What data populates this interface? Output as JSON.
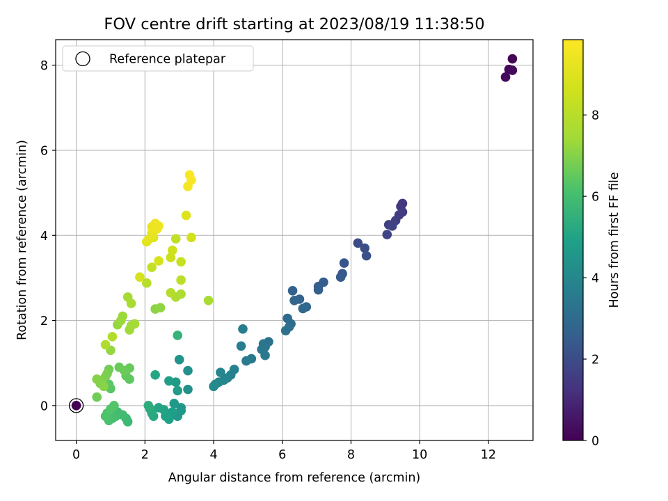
{
  "chart_data": {
    "type": "scatter",
    "title": "FOV centre drift starting at 2023/08/19 11:38:50",
    "xlabel": "Angular distance from reference (arcmin)",
    "ylabel": "Rotation from reference (arcmin)",
    "xlim": [
      -0.6,
      13.3
    ],
    "ylim": [
      -0.82,
      8.6
    ],
    "xticks": [
      0,
      2,
      4,
      6,
      8,
      10,
      12
    ],
    "yticks": [
      0,
      2,
      4,
      6,
      8
    ],
    "grid": true,
    "legend": {
      "placement": "top-left",
      "entries": [
        "Reference platepar"
      ]
    },
    "colorbar": {
      "label": "Hours from first FF file",
      "range": [
        0,
        9.85
      ],
      "ticks": [
        0,
        2,
        4,
        6,
        8
      ],
      "colormap": "viridis"
    },
    "reference_point": {
      "x": 0,
      "y": 0,
      "hours": 0
    },
    "points": [
      {
        "x": 12.7,
        "y": 8.15,
        "h": 0.1
      },
      {
        "x": 12.6,
        "y": 7.9,
        "h": 0.15
      },
      {
        "x": 12.7,
        "y": 7.88,
        "h": 0.2
      },
      {
        "x": 12.5,
        "y": 7.72,
        "h": 0.25
      },
      {
        "x": 9.5,
        "y": 4.75,
        "h": 1.4
      },
      {
        "x": 9.45,
        "y": 4.68,
        "h": 1.45
      },
      {
        "x": 9.5,
        "y": 4.55,
        "h": 1.5
      },
      {
        "x": 9.4,
        "y": 4.48,
        "h": 1.55
      },
      {
        "x": 9.3,
        "y": 4.35,
        "h": 1.6
      },
      {
        "x": 9.1,
        "y": 4.25,
        "h": 1.65
      },
      {
        "x": 9.2,
        "y": 4.22,
        "h": 1.7
      },
      {
        "x": 9.05,
        "y": 4.02,
        "h": 1.75
      },
      {
        "x": 8.2,
        "y": 3.82,
        "h": 2.0
      },
      {
        "x": 8.4,
        "y": 3.7,
        "h": 2.05
      },
      {
        "x": 8.45,
        "y": 3.52,
        "h": 2.1
      },
      {
        "x": 7.8,
        "y": 3.35,
        "h": 2.3
      },
      {
        "x": 7.75,
        "y": 3.1,
        "h": 2.35
      },
      {
        "x": 7.7,
        "y": 3.02,
        "h": 2.4
      },
      {
        "x": 7.2,
        "y": 2.9,
        "h": 2.5
      },
      {
        "x": 7.05,
        "y": 2.8,
        "h": 2.55
      },
      {
        "x": 7.05,
        "y": 2.72,
        "h": 2.6
      },
      {
        "x": 6.3,
        "y": 2.7,
        "h": 2.7
      },
      {
        "x": 6.5,
        "y": 2.5,
        "h": 2.75
      },
      {
        "x": 6.35,
        "y": 2.47,
        "h": 2.8
      },
      {
        "x": 6.7,
        "y": 2.32,
        "h": 2.85
      },
      {
        "x": 6.6,
        "y": 2.28,
        "h": 2.9
      },
      {
        "x": 6.15,
        "y": 2.05,
        "h": 3.0
      },
      {
        "x": 6.25,
        "y": 1.92,
        "h": 3.05
      },
      {
        "x": 6.2,
        "y": 1.85,
        "h": 3.1
      },
      {
        "x": 6.1,
        "y": 1.76,
        "h": 3.15
      },
      {
        "x": 5.6,
        "y": 1.5,
        "h": 3.25
      },
      {
        "x": 5.45,
        "y": 1.45,
        "h": 3.3
      },
      {
        "x": 5.5,
        "y": 1.38,
        "h": 3.35
      },
      {
        "x": 5.4,
        "y": 1.32,
        "h": 3.4
      },
      {
        "x": 5.5,
        "y": 1.18,
        "h": 3.45
      },
      {
        "x": 5.1,
        "y": 1.1,
        "h": 3.5
      },
      {
        "x": 4.95,
        "y": 1.05,
        "h": 3.55
      },
      {
        "x": 4.85,
        "y": 1.8,
        "h": 3.6
      },
      {
        "x": 4.8,
        "y": 1.4,
        "h": 3.65
      },
      {
        "x": 4.6,
        "y": 0.85,
        "h": 3.75
      },
      {
        "x": 4.5,
        "y": 0.72,
        "h": 3.8
      },
      {
        "x": 4.4,
        "y": 0.65,
        "h": 3.85
      },
      {
        "x": 4.3,
        "y": 0.6,
        "h": 3.9
      },
      {
        "x": 4.2,
        "y": 0.78,
        "h": 3.95
      },
      {
        "x": 4.15,
        "y": 0.55,
        "h": 4.0
      },
      {
        "x": 4.05,
        "y": 0.5,
        "h": 4.05
      },
      {
        "x": 4.0,
        "y": 0.45,
        "h": 4.1
      },
      {
        "x": 3.25,
        "y": 0.82,
        "h": 4.3
      },
      {
        "x": 3.25,
        "y": 0.38,
        "h": 4.35
      },
      {
        "x": 3.0,
        "y": 1.08,
        "h": 4.4
      },
      {
        "x": 3.05,
        "y": -0.05,
        "h": 4.5
      },
      {
        "x": 3.05,
        "y": -0.12,
        "h": 4.55
      },
      {
        "x": 2.95,
        "y": -0.25,
        "h": 4.6
      },
      {
        "x": 2.85,
        "y": 0.05,
        "h": 4.65
      },
      {
        "x": 2.9,
        "y": 0.55,
        "h": 4.7
      },
      {
        "x": 2.95,
        "y": 0.35,
        "h": 4.75
      },
      {
        "x": 2.7,
        "y": 0.58,
        "h": 4.8
      },
      {
        "x": 2.8,
        "y": -0.15,
        "h": 4.85
      },
      {
        "x": 2.7,
        "y": -0.32,
        "h": 4.9
      },
      {
        "x": 2.6,
        "y": -0.25,
        "h": 4.95
      },
      {
        "x": 2.55,
        "y": -0.1,
        "h": 5.0
      },
      {
        "x": 2.4,
        "y": -0.05,
        "h": 5.05
      },
      {
        "x": 2.3,
        "y": 0.72,
        "h": 5.1
      },
      {
        "x": 2.25,
        "y": -0.25,
        "h": 5.2
      },
      {
        "x": 2.2,
        "y": -0.18,
        "h": 5.25
      },
      {
        "x": 2.15,
        "y": -0.08,
        "h": 5.3
      },
      {
        "x": 2.1,
        "y": 0.0,
        "h": 5.35
      },
      {
        "x": 2.95,
        "y": 1.65,
        "h": 5.6
      },
      {
        "x": 1.5,
        "y": -0.38,
        "h": 5.8
      },
      {
        "x": 1.45,
        "y": -0.3,
        "h": 5.85
      },
      {
        "x": 1.35,
        "y": -0.22,
        "h": 5.9
      },
      {
        "x": 1.2,
        "y": -0.15,
        "h": 5.95
      },
      {
        "x": 1.15,
        "y": -0.25,
        "h": 6.0
      },
      {
        "x": 1.05,
        "y": -0.3,
        "h": 6.05
      },
      {
        "x": 0.95,
        "y": -0.35,
        "h": 6.1
      },
      {
        "x": 0.9,
        "y": -0.18,
        "h": 6.15
      },
      {
        "x": 0.85,
        "y": -0.25,
        "h": 6.2
      },
      {
        "x": 1.0,
        "y": -0.08,
        "h": 6.25
      },
      {
        "x": 1.1,
        "y": 0.0,
        "h": 6.3
      },
      {
        "x": 1.0,
        "y": 0.4,
        "h": 6.35
      },
      {
        "x": 0.95,
        "y": 0.5,
        "h": 6.4
      },
      {
        "x": 1.55,
        "y": 0.62,
        "h": 6.45
      },
      {
        "x": 1.45,
        "y": 0.7,
        "h": 6.5
      },
      {
        "x": 1.55,
        "y": 0.88,
        "h": 6.55
      },
      {
        "x": 1.25,
        "y": 0.9,
        "h": 6.6
      },
      {
        "x": 1.4,
        "y": 0.82,
        "h": 6.65
      },
      {
        "x": 0.6,
        "y": 0.2,
        "h": 6.7
      },
      {
        "x": 0.95,
        "y": 0.85,
        "h": 6.75
      },
      {
        "x": 0.9,
        "y": 0.75,
        "h": 6.8
      },
      {
        "x": 0.85,
        "y": 0.68,
        "h": 6.85
      },
      {
        "x": 0.75,
        "y": 0.6,
        "h": 6.9
      },
      {
        "x": 0.7,
        "y": 0.52,
        "h": 6.95
      },
      {
        "x": 0.6,
        "y": 0.62,
        "h": 7.0
      },
      {
        "x": 0.8,
        "y": 0.45,
        "h": 7.05
      },
      {
        "x": 2.3,
        "y": 2.27,
        "h": 7.1
      },
      {
        "x": 2.45,
        "y": 2.3,
        "h": 7.15
      },
      {
        "x": 1.0,
        "y": 1.3,
        "h": 7.2
      },
      {
        "x": 1.2,
        "y": 1.9,
        "h": 7.25
      },
      {
        "x": 1.3,
        "y": 2.0,
        "h": 7.3
      },
      {
        "x": 1.35,
        "y": 2.1,
        "h": 7.35
      },
      {
        "x": 1.55,
        "y": 1.78,
        "h": 7.4
      },
      {
        "x": 1.6,
        "y": 1.88,
        "h": 7.45
      },
      {
        "x": 1.7,
        "y": 1.92,
        "h": 7.5
      },
      {
        "x": 1.5,
        "y": 2.55,
        "h": 7.55
      },
      {
        "x": 1.6,
        "y": 2.4,
        "h": 7.6
      },
      {
        "x": 3.85,
        "y": 2.47,
        "h": 7.65
      },
      {
        "x": 2.9,
        "y": 2.55,
        "h": 7.7
      },
      {
        "x": 3.05,
        "y": 2.62,
        "h": 7.75
      },
      {
        "x": 0.85,
        "y": 1.43,
        "h": 7.8
      },
      {
        "x": 1.05,
        "y": 1.62,
        "h": 7.85
      },
      {
        "x": 2.75,
        "y": 2.65,
        "h": 7.95
      },
      {
        "x": 2.05,
        "y": 2.88,
        "h": 8.0
      },
      {
        "x": 3.05,
        "y": 2.95,
        "h": 8.1
      },
      {
        "x": 2.9,
        "y": 3.92,
        "h": 8.2
      },
      {
        "x": 2.2,
        "y": 3.25,
        "h": 8.3
      },
      {
        "x": 3.05,
        "y": 3.38,
        "h": 8.4
      },
      {
        "x": 2.75,
        "y": 3.48,
        "h": 8.5
      },
      {
        "x": 2.8,
        "y": 3.65,
        "h": 8.6
      },
      {
        "x": 3.35,
        "y": 3.95,
        "h": 8.7
      },
      {
        "x": 1.85,
        "y": 3.02,
        "h": 8.75
      },
      {
        "x": 2.4,
        "y": 3.4,
        "h": 8.8
      },
      {
        "x": 3.2,
        "y": 4.47,
        "h": 9.0
      },
      {
        "x": 2.25,
        "y": 3.95,
        "h": 9.1
      },
      {
        "x": 2.05,
        "y": 3.85,
        "h": 9.15
      },
      {
        "x": 2.1,
        "y": 3.9,
        "h": 9.2
      },
      {
        "x": 2.2,
        "y": 4.05,
        "h": 9.25
      },
      {
        "x": 2.25,
        "y": 4.1,
        "h": 9.3
      },
      {
        "x": 2.2,
        "y": 4.2,
        "h": 9.35
      },
      {
        "x": 2.35,
        "y": 4.15,
        "h": 9.4
      },
      {
        "x": 2.3,
        "y": 4.28,
        "h": 9.45
      },
      {
        "x": 2.4,
        "y": 4.22,
        "h": 9.5
      },
      {
        "x": 3.25,
        "y": 5.15,
        "h": 9.6
      },
      {
        "x": 3.35,
        "y": 5.3,
        "h": 9.65
      },
      {
        "x": 3.3,
        "y": 5.42,
        "h": 9.75
      }
    ]
  }
}
